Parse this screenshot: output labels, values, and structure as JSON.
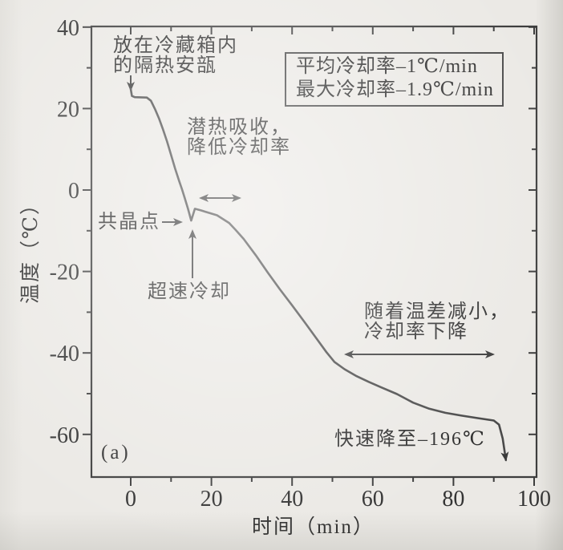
{
  "figure": {
    "panel_label": "(a)"
  },
  "legend": {
    "lines": [
      "平均冷却率–1℃/min",
      "最大冷却率–1.9℃/min"
    ]
  },
  "annotations": {
    "ampoule": {
      "l1": "放在冷藏箱内",
      "l2": "的隔热安瓿"
    },
    "latent": {
      "l1": "潜热吸收，",
      "l2": "降低冷却率"
    },
    "eutectic": {
      "label": "共晶点"
    },
    "supercool": {
      "label": "超速冷却"
    },
    "tempdiff": {
      "l1": "随着温差减小，",
      "l2": "冷却率下降"
    },
    "rapid": {
      "label": "快速降至–196℃"
    }
  },
  "colors": {
    "ink": "#2f2f2f",
    "axis": "#3d3d3d",
    "curve": "#4a4a4a",
    "background": "#ebe9e5"
  },
  "chart_data": {
    "type": "line",
    "title": "",
    "xlabel": "时间（min）",
    "ylabel": "温度（℃）",
    "xlim": [
      -10,
      101
    ],
    "ylim": [
      -71,
      41
    ],
    "grid": false,
    "x_ticks": [
      0,
      20,
      40,
      60,
      80,
      100
    ],
    "x_minor_ticks": [
      10,
      30,
      50,
      70,
      90
    ],
    "y_ticks": [
      40,
      20,
      0,
      -20,
      -40,
      -60
    ],
    "y_minor_ticks": [
      30,
      10,
      -10,
      -30,
      -50
    ],
    "series": [
      {
        "name": "冷却曲线",
        "points": [
          [
            0,
            24.8
          ],
          [
            0.3,
            23.1
          ],
          [
            1,
            22.8
          ],
          [
            4,
            22.7
          ],
          [
            5,
            21.9
          ],
          [
            6,
            19.9
          ],
          [
            7,
            17.6
          ],
          [
            8,
            14.9
          ],
          [
            9,
            11.9
          ],
          [
            10,
            8.6
          ],
          [
            11,
            5.3
          ],
          [
            12,
            2.2
          ],
          [
            12.7,
            0.2
          ],
          [
            13.4,
            -2.0
          ],
          [
            14.2,
            -4.6
          ],
          [
            15,
            -7.5
          ],
          [
            15.9,
            -4.6
          ],
          [
            17.4,
            -5.0
          ],
          [
            19,
            -5.5
          ],
          [
            21.4,
            -6.2
          ],
          [
            24.4,
            -8.1
          ],
          [
            26,
            -9.8
          ],
          [
            28,
            -12.0
          ],
          [
            31,
            -16.0
          ],
          [
            34,
            -20.3
          ],
          [
            37,
            -24.4
          ],
          [
            40,
            -28.3
          ],
          [
            43,
            -32.3
          ],
          [
            46,
            -36.4
          ],
          [
            48.5,
            -39.8
          ],
          [
            50.5,
            -42.2
          ],
          [
            53,
            -44.0
          ],
          [
            56,
            -45.7
          ],
          [
            59,
            -47.1
          ],
          [
            62,
            -48.4
          ],
          [
            66,
            -50.1
          ],
          [
            70,
            -52.2
          ],
          [
            74,
            -53.7
          ],
          [
            78,
            -54.7
          ],
          [
            82,
            -55.4
          ],
          [
            86,
            -56.0
          ],
          [
            90,
            -56.6
          ],
          [
            91.3,
            -57.6
          ],
          [
            92.2,
            -61.0
          ],
          [
            93,
            -66.3
          ]
        ]
      }
    ],
    "stats": {
      "average_cooling_rate": "–1℃/min",
      "max_cooling_rate": "–1.9℃/min"
    },
    "annotations": [
      {
        "text": "放在冷藏箱内的隔热安瓿",
        "arrow_to": [
          0,
          23
        ]
      },
      {
        "text": "潜热吸收，降低冷却率",
        "span_min": [
          17,
          27.5
        ],
        "at_temp": -2
      },
      {
        "text": "共晶点",
        "arrow_to": [
          15,
          -7.5
        ]
      },
      {
        "text": "超速冷却",
        "arrow_to": [
          15.3,
          -9
        ]
      },
      {
        "text": "随着温差减小，冷却率下降",
        "span_min": [
          53,
          90.3
        ],
        "at_temp": -40.3
      },
      {
        "text": "快速降至–196℃",
        "arrow_to": [
          93,
          -67
        ]
      },
      {
        "text": "(a)",
        "at": [
          -4,
          -62
        ]
      }
    ]
  }
}
